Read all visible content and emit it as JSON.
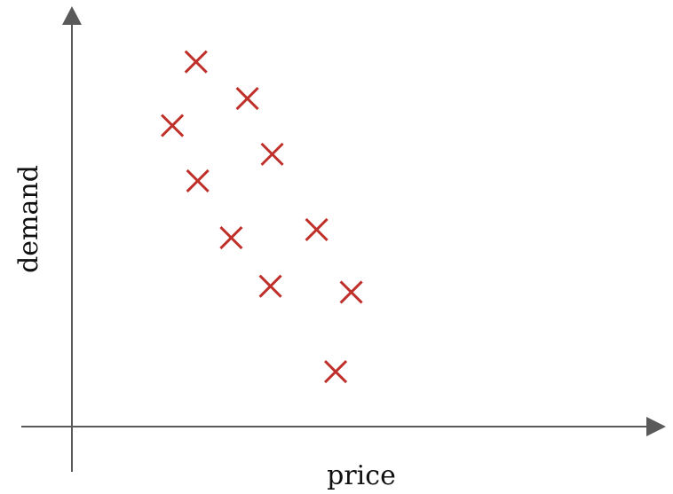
{
  "chart_data": {
    "type": "scatter",
    "title": "",
    "xlabel": "price",
    "ylabel": "demand",
    "grid": false,
    "legend": "none",
    "tick_labels": "none",
    "marker": "x",
    "marker_color": "#c0302a",
    "axis_color": "#5a5a5a",
    "xlim": [
      0,
      100
    ],
    "ylim": [
      0,
      100
    ],
    "series": [
      {
        "x": [
          21.5,
          30.4,
          17.4,
          34.7,
          21.8,
          27.6,
          42.4,
          34.4,
          48.4,
          45.7
        ],
        "y": [
          90.4,
          81.3,
          74.6,
          67.5,
          60.9,
          46.8,
          48.8,
          34.8,
          33.3,
          13.6
        ]
      }
    ]
  }
}
